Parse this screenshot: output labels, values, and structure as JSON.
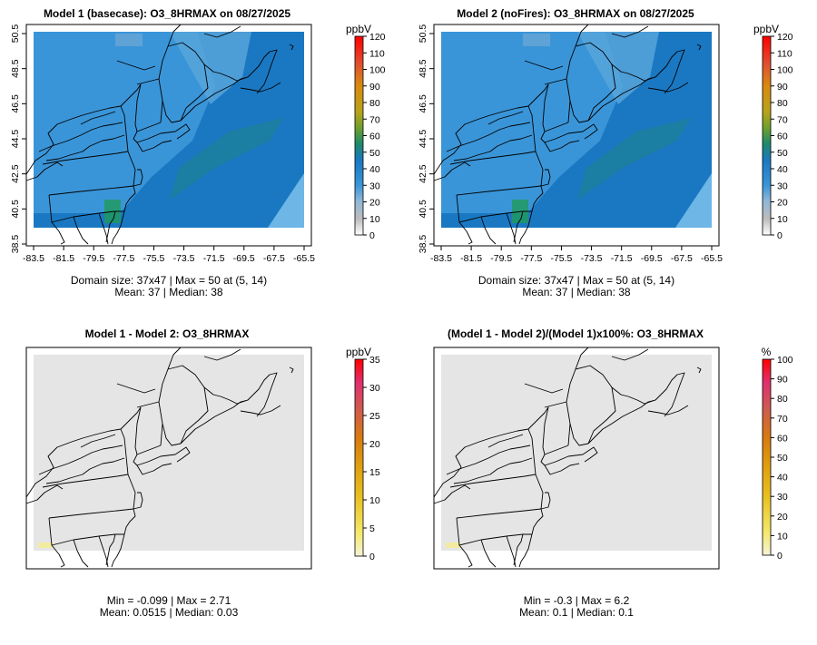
{
  "panels": [
    {
      "id": "model1",
      "title": "Model 1 (basecase): O3_8HRMAX on 08/27/2025",
      "kind": "concentration",
      "show_axes": true,
      "unit": "ppbV",
      "colorbar_ticks": [
        "0",
        "10",
        "20",
        "30",
        "40",
        "50",
        "60",
        "70",
        "80",
        "90",
        "100",
        "110",
        "120"
      ],
      "colorbar_max": 120,
      "stat_line1": "Domain size: 37x47 | Max = 50 at (5, 14)",
      "stat_line2": "Mean: 37 |  Median: 38"
    },
    {
      "id": "model2",
      "title": "Model 2 (noFires): O3_8HRMAX on 08/27/2025",
      "kind": "concentration",
      "show_axes": true,
      "unit": "ppbV",
      "colorbar_ticks": [
        "0",
        "10",
        "20",
        "30",
        "40",
        "50",
        "60",
        "70",
        "80",
        "90",
        "100",
        "110",
        "120"
      ],
      "colorbar_max": 120,
      "stat_line1": "Domain size: 37x47 | Max = 50 at (5, 14)",
      "stat_line2": "Mean: 37 |  Median: 38"
    },
    {
      "id": "diff",
      "title": "Model 1 - Model 2: O3_8HRMAX",
      "kind": "difference",
      "show_axes": false,
      "unit": "ppbV",
      "colorbar_ticks": [
        "0",
        "5",
        "10",
        "15",
        "20",
        "25",
        "30",
        "35"
      ],
      "colorbar_max": 35,
      "stat_line1": "Min = -0.099 | Max = 2.71",
      "stat_line2": "Mean: 0.0515 |  Median: 0.03"
    },
    {
      "id": "pctdiff",
      "title": "(Model 1 - Model 2)/(Model 1)x100%: O3_8HRMAX",
      "kind": "difference",
      "show_axes": false,
      "unit": "%",
      "colorbar_ticks": [
        "0",
        "10",
        "20",
        "30",
        "40",
        "50",
        "60",
        "70",
        "80",
        "90",
        "100"
      ],
      "colorbar_max": 100,
      "stat_line1": "Min = -0.3 | Max = 6.2",
      "stat_line2": "Mean: 0.1 |  Median: 0.1"
    }
  ],
  "x_ticks": [
    "-83.5",
    "-81.5",
    "-79.5",
    "-77.5",
    "-75.5",
    "-73.5",
    "-71.5",
    "-69.5",
    "-67.5",
    "-65.5"
  ],
  "y_ticks": [
    "38.5",
    "40.5",
    "42.5",
    "44.5",
    "46.5",
    "48.5",
    "50.5"
  ],
  "colors": {
    "ozone_base": "#1a78c2",
    "ozone_land": "#3a95d8",
    "ozone_green": "#1f8a6a",
    "diff_fill": "#e5e5e5",
    "diff_spot": "#f2eba0"
  }
}
